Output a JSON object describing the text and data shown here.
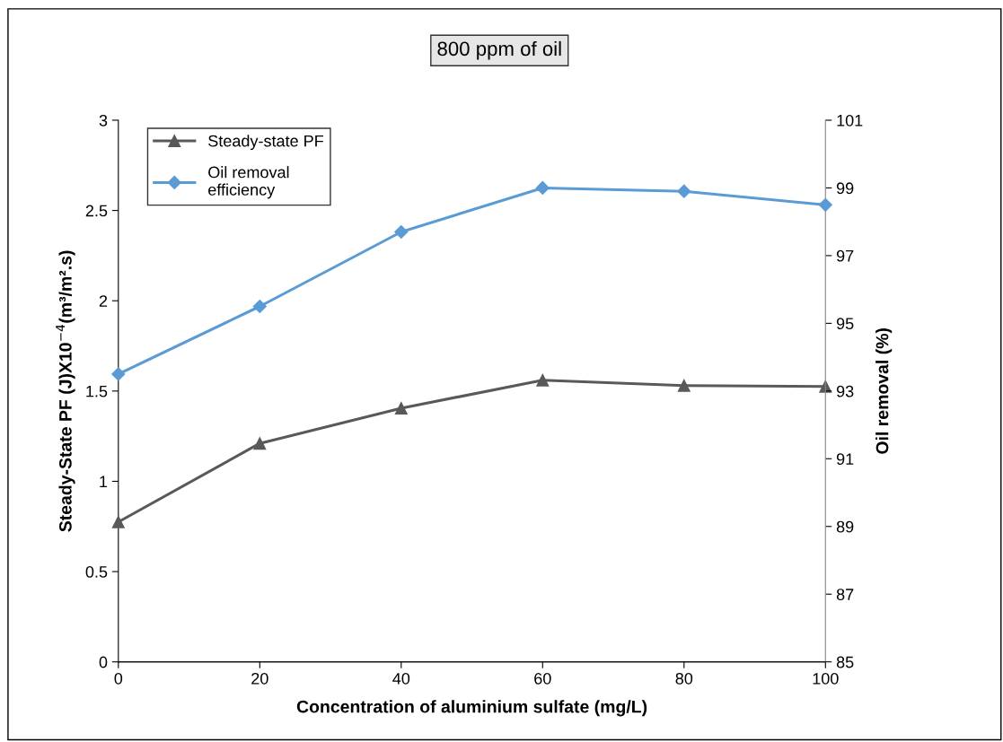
{
  "chart_data": {
    "type": "line",
    "title": "800 ppm of oil",
    "xlabel": "Concentration of aluminium sulfate (mg/L)",
    "ylabel": "Steady-State PF (J)X10$^{−4}$(m³/m².s)",
    "y2label": "Oil removal (%)",
    "x": [
      0,
      20,
      40,
      60,
      80,
      100
    ],
    "series": [
      {
        "name": "Steady-state PF",
        "color": "#595959",
        "marker": "triangle",
        "values": [
          0.775,
          1.21,
          1.405,
          1.56,
          1.53,
          1.525
        ]
      },
      {
        "name": "Oil removal\nefficiency",
        "color": "#5b9bd5",
        "marker": "diamond",
        "axis": "y2",
        "values": [
          93.5,
          95.5,
          97.7,
          99.0,
          98.9,
          98.5
        ]
      }
    ],
    "xlim": [
      0,
      100
    ],
    "xticks": [
      0,
      20,
      40,
      60,
      80,
      100
    ],
    "ylim": [
      0,
      3
    ],
    "yticks": [
      0,
      0.5,
      1,
      1.5,
      2,
      2.5,
      3
    ],
    "y2lim": [
      85,
      101
    ],
    "y2ticks": [
      85,
      87,
      89,
      91,
      93,
      95,
      97,
      99,
      101
    ],
    "grid": false,
    "legend": "top left",
    "line_style": "solid"
  }
}
